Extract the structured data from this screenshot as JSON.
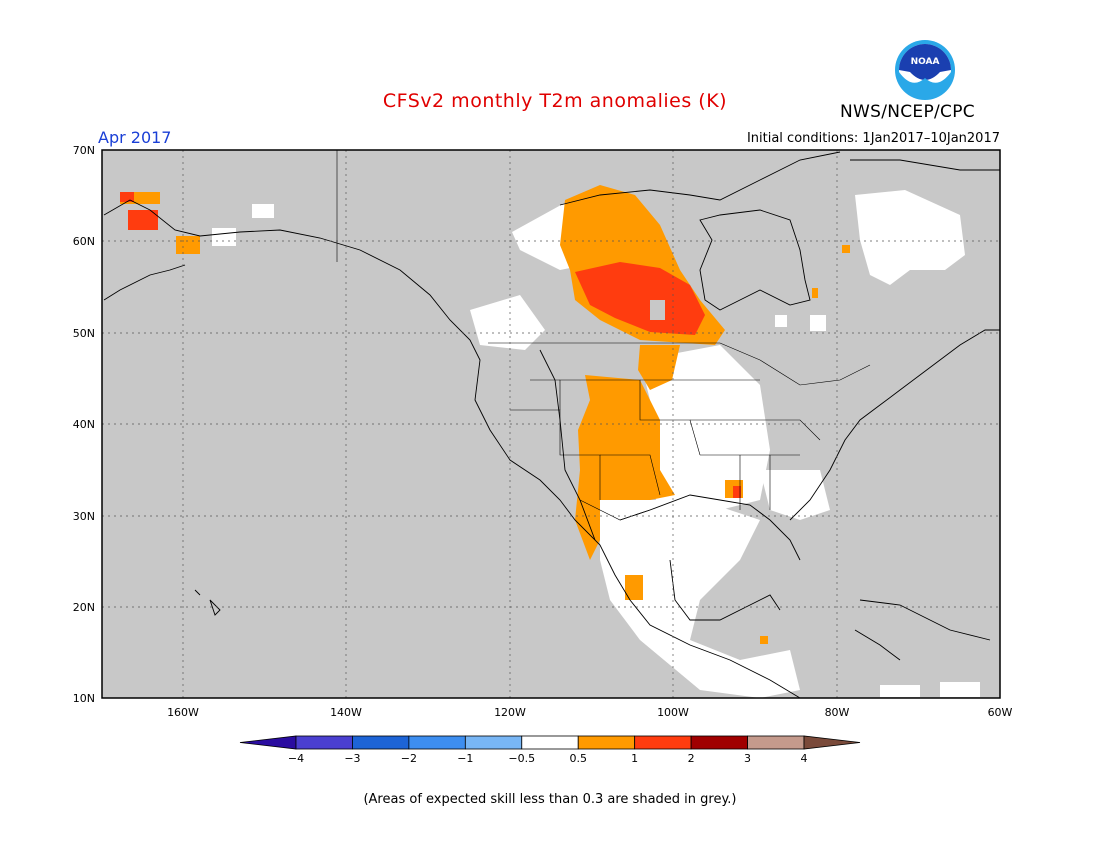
{
  "title": "CFSv2 monthly T2m anomalies (K)",
  "period": "Apr 2017",
  "org": "NWS/NCEP/CPC",
  "logo_text": "NOAA",
  "initial_conditions": "Initial conditions: 1Jan2017–10Jan2017",
  "note": "(Areas of expected skill less than 0.3 are shaded in grey.)",
  "map": {
    "lon_range": [
      -170,
      -60
    ],
    "lat_range": [
      10,
      70
    ],
    "lat_labels": [
      "10N",
      "20N",
      "30N",
      "40N",
      "50N",
      "60N",
      "70N"
    ],
    "lon_labels": [
      "160W",
      "140W",
      "120W",
      "100W",
      "80W",
      "60W"
    ],
    "grid": true,
    "no_skill_color": "#c8c8c8"
  },
  "colorbar": {
    "labels": [
      "−4",
      "−3",
      "−2",
      "−1",
      "−0.5",
      "0.5",
      "1",
      "2",
      "3",
      "4"
    ],
    "colors": [
      "#2a0ca0",
      "#4a3fd0",
      "#1d64d6",
      "#3d8ef0",
      "#78b6f5",
      "#ffffff",
      "#ff9a00",
      "#ff3c0f",
      "#a00000",
      "#c49a8c",
      "#7a4a3a"
    ]
  }
}
